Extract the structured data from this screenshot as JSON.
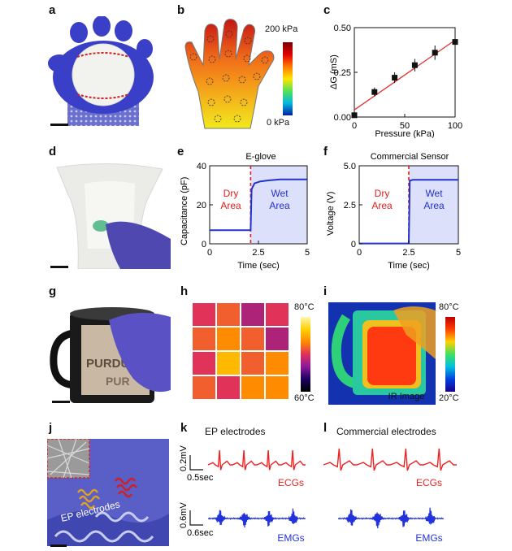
{
  "panel_labels": {
    "a": "a",
    "b": "b",
    "c": "c",
    "d": "d",
    "e": "e",
    "f": "f",
    "g": "g",
    "h": "h",
    "i": "i",
    "j": "j",
    "k": "k",
    "l": "l"
  },
  "panel_b": {
    "max_label": "200 kPa",
    "min_label": "0 kPa"
  },
  "panel_e": {
    "title": "E-glove",
    "dry_label_1": "Dry",
    "dry_label_2": "Area",
    "wet_label_1": "Wet",
    "wet_label_2": "Area"
  },
  "panel_f": {
    "title": "Commercial Sensor",
    "dry_label_1": "Dry",
    "dry_label_2": "Area",
    "wet_label_1": "Wet",
    "wet_label_2": "Area"
  },
  "panel_h": {
    "max_label": "80°C",
    "min_label": "60°C"
  },
  "panel_i": {
    "max_label": "80°C",
    "min_label": "20°C",
    "caption": "IR Image"
  },
  "panel_g": {
    "mug_text_1": "PURDUE",
    "mug_text_2": "PUR"
  },
  "panel_j": {
    "caption": "EP electrodes"
  },
  "panel_k": {
    "title": "EP electrodes",
    "ecg_scale_v": "0.2mV",
    "ecg_scale_t": "0.5sec",
    "ecg_label": "ECGs",
    "emg_scale_v": "0.6mV",
    "emg_scale_t": "0.6sec",
    "emg_label": "EMGs"
  },
  "panel_l": {
    "title": "Commercial electrodes",
    "ecg_label": "ECGs",
    "emg_label": "EMGs"
  },
  "chart_data": [
    {
      "id": "c",
      "type": "scatter",
      "xlabel": "Pressure (kPa)",
      "ylabel": "ΔG (mS)",
      "xlim": [
        0,
        100
      ],
      "ylim": [
        0,
        0.5
      ],
      "xticks": [
        0,
        50,
        100
      ],
      "yticks": [
        0,
        0.25,
        0.5
      ],
      "x": [
        0,
        20,
        40,
        60,
        80,
        100
      ],
      "y": [
        0.01,
        0.14,
        0.22,
        0.29,
        0.36,
        0.42
      ],
      "err": [
        0.005,
        0.025,
        0.03,
        0.035,
        0.04,
        0.04
      ],
      "fit": {
        "x": [
          0,
          100
        ],
        "y": [
          0.04,
          0.43
        ]
      }
    },
    {
      "id": "e",
      "type": "line",
      "title": "E-glove",
      "xlabel": "Time (sec)",
      "ylabel": "Capacitance (pF)",
      "xlim": [
        0,
        5
      ],
      "ylim": [
        0,
        40
      ],
      "xticks": [
        0,
        2.5,
        5
      ],
      "yticks": [
        0,
        20,
        40
      ],
      "x": [
        0,
        2.1,
        2.15,
        2.3,
        2.6,
        3.0,
        3.6,
        5.0
      ],
      "y": [
        7,
        7,
        28,
        31,
        32,
        32.5,
        33,
        33
      ],
      "event_x": 2.1
    },
    {
      "id": "f",
      "type": "line",
      "title": "Commercial Sensor",
      "xlabel": "Time (sec)",
      "ylabel": "Voltage (V)",
      "xlim": [
        0,
        5
      ],
      "ylim": [
        0,
        5
      ],
      "xticks": [
        0,
        2.5,
        5
      ],
      "yticks": [
        0,
        2.5,
        5.0
      ],
      "x": [
        0,
        2.5,
        2.55,
        2.7,
        5.0
      ],
      "y": [
        0.02,
        0.02,
        4.05,
        4.1,
        4.1
      ],
      "event_x": 2.5
    },
    {
      "id": "h",
      "type": "heatmap",
      "rows": 4,
      "cols": 4,
      "values": [
        [
          70,
          72,
          68,
          70
        ],
        [
          72,
          74,
          72,
          68
        ],
        [
          70,
          76,
          72,
          74
        ],
        [
          72,
          70,
          74,
          74
        ]
      ]
    }
  ],
  "tick_text": {
    "c_x": [
      "0",
      "50",
      "100"
    ],
    "c_y": [
      "0.00",
      "0.25",
      "0.50"
    ],
    "e_x": [
      "0",
      "2.5",
      "5"
    ],
    "e_y": [
      "0",
      "20",
      "40"
    ],
    "f_x": [
      "0",
      "2.5",
      "5"
    ],
    "f_y": [
      "0",
      "2.5",
      "5.0"
    ]
  },
  "colors": {
    "fit": "#e03030",
    "wet_fill": "#dde0fb",
    "trace_blue": "#2233cc",
    "event_red": "#e02020",
    "ecg_red": "#ee2222",
    "emg_blue": "#2233dd"
  }
}
